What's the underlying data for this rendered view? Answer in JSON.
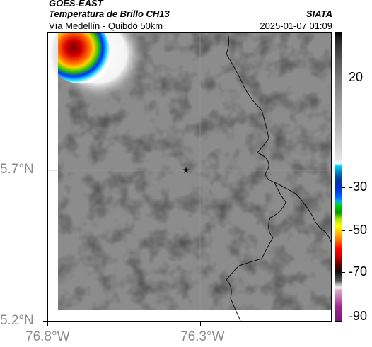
{
  "header": {
    "satellite": "GOES-EAST",
    "product": "Temperatura de Brillo CH13",
    "region": "Vía Medellín - Quibdó 50km",
    "organization": "SIATA",
    "timestamp": "2025-01-07 01:09"
  },
  "map": {
    "latitude_labels": [
      "5.7°N",
      "5.2°N"
    ],
    "longitude_labels": [
      "76.8°W",
      "76.3°W"
    ],
    "marker": "star",
    "marker_symbol": "★"
  },
  "colorbar": {
    "tick_labels": [
      "20",
      "-30",
      "-50",
      "-70",
      "-90"
    ]
  }
}
